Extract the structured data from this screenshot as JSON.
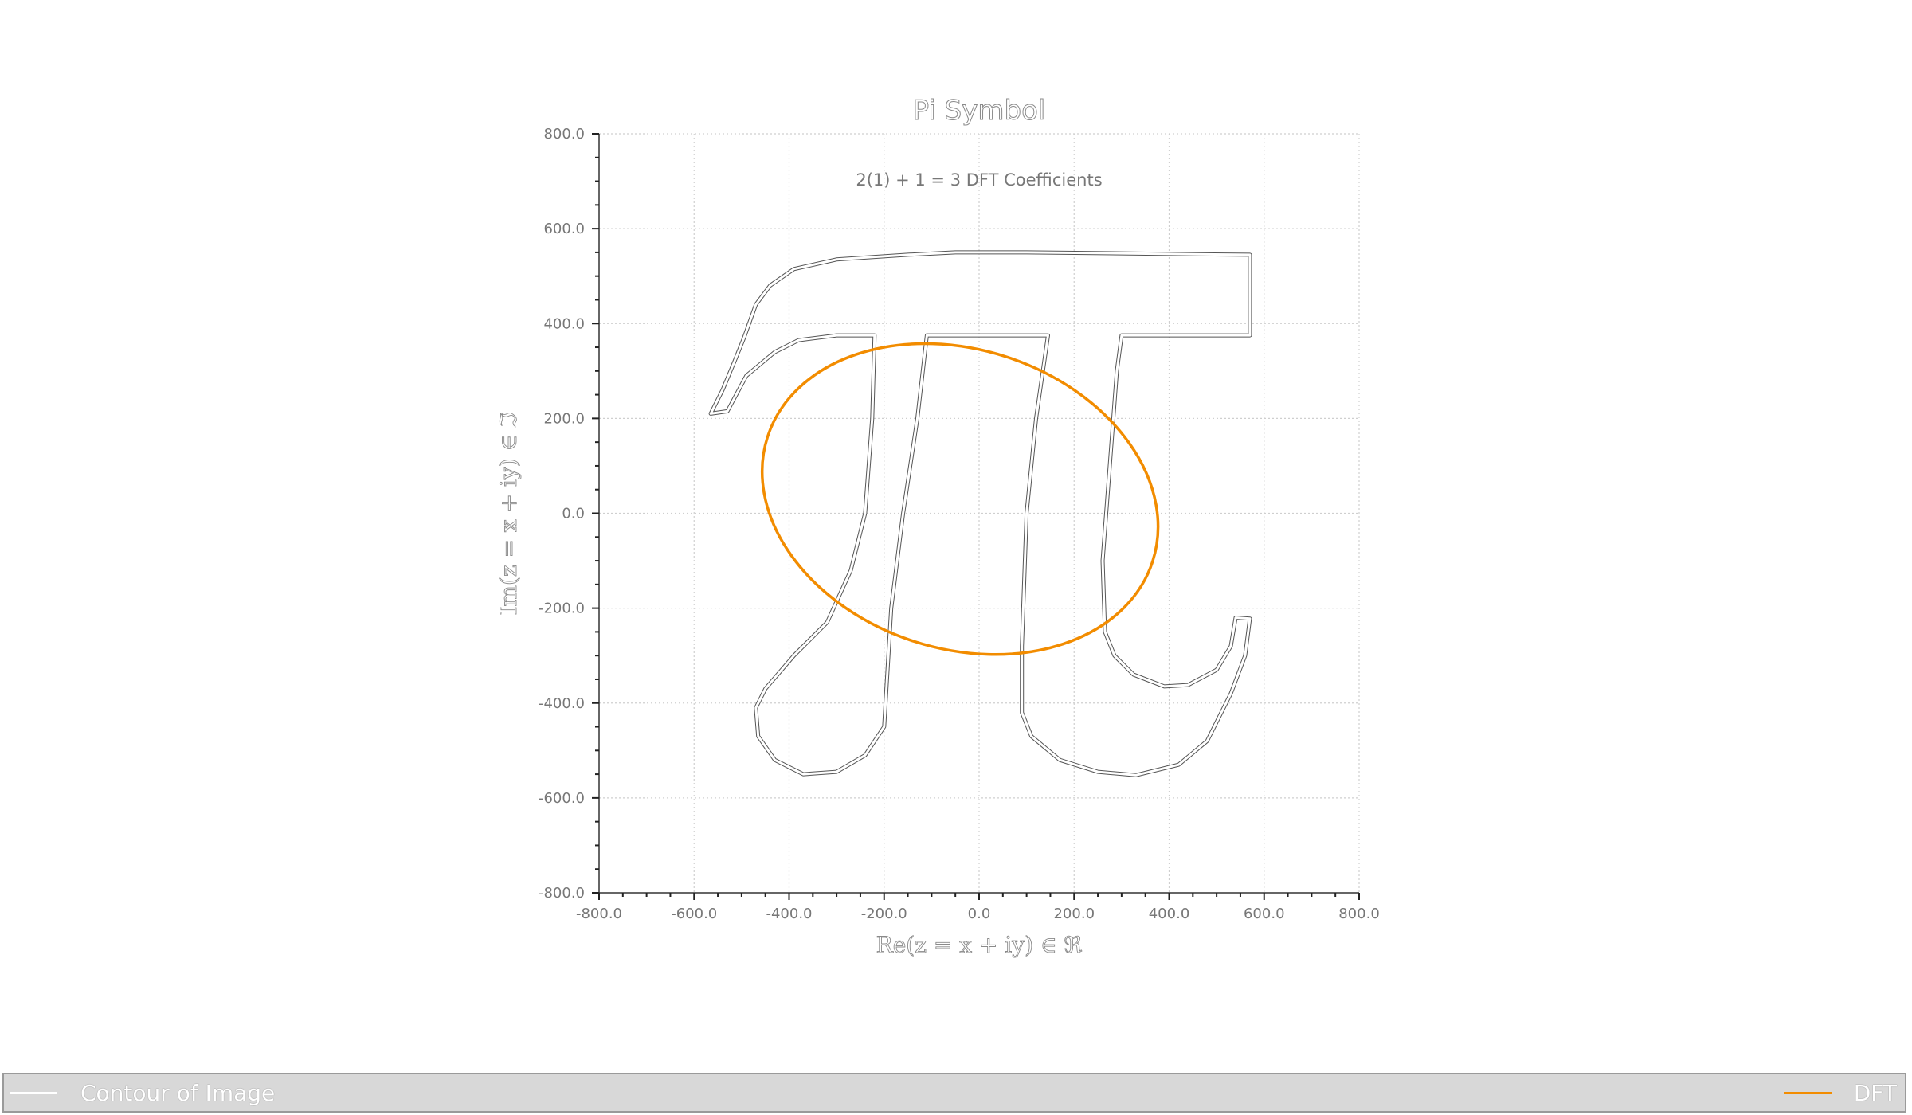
{
  "chart_data": {
    "type": "line",
    "title": "Pi Symbol",
    "annotation": "2(1) + 1 = 3 DFT Coefficients",
    "xlabel": "Re(z = x + iy)  ∈ ℜ",
    "ylabel": "Im(z = x + iy)  ∈ ℑ",
    "xlim": [
      -800,
      800
    ],
    "ylim": [
      -800,
      800
    ],
    "x_ticks": [
      "-800.0",
      "-600.0",
      "-400.0",
      "-200.0",
      "0.0",
      "200.0",
      "400.0",
      "600.0",
      "800.0"
    ],
    "y_ticks": [
      "800.0",
      "600.0",
      "400.0",
      "200.0",
      "0.0",
      "-200.0",
      "-400.0",
      "-600.0",
      "-800.0"
    ],
    "grid": true,
    "legend_position": "bottom",
    "series": [
      {
        "name": "Contour of Image",
        "color": "#ffffff",
        "points": [
          [
            -565,
            210
          ],
          [
            -540,
            260
          ],
          [
            -515,
            320
          ],
          [
            -495,
            370
          ],
          [
            -470,
            440
          ],
          [
            -440,
            480
          ],
          [
            -390,
            515
          ],
          [
            -300,
            535
          ],
          [
            -150,
            545
          ],
          [
            -50,
            550
          ],
          [
            100,
            550
          ],
          [
            300,
            548
          ],
          [
            455,
            546
          ],
          [
            570,
            545
          ],
          [
            570,
            375
          ],
          [
            300,
            375
          ],
          [
            290,
            300
          ],
          [
            275,
            100
          ],
          [
            260,
            -100
          ],
          [
            265,
            -250
          ],
          [
            285,
            -300
          ],
          [
            325,
            -340
          ],
          [
            390,
            -365
          ],
          [
            440,
            -362
          ],
          [
            500,
            -330
          ],
          [
            530,
            -280
          ],
          [
            540,
            -220
          ],
          [
            570,
            -222
          ],
          [
            560,
            -300
          ],
          [
            530,
            -380
          ],
          [
            480,
            -480
          ],
          [
            420,
            -530
          ],
          [
            330,
            -552
          ],
          [
            250,
            -545
          ],
          [
            170,
            -520
          ],
          [
            110,
            -470
          ],
          [
            90,
            -420
          ],
          [
            90,
            -280
          ],
          [
            100,
            0
          ],
          [
            120,
            200
          ],
          [
            145,
            375
          ],
          [
            -110,
            375
          ],
          [
            -130,
            200
          ],
          [
            -160,
            0
          ],
          [
            -185,
            -200
          ],
          [
            -200,
            -450
          ],
          [
            -240,
            -510
          ],
          [
            -300,
            -545
          ],
          [
            -370,
            -550
          ],
          [
            -430,
            -520
          ],
          [
            -465,
            -470
          ],
          [
            -470,
            -410
          ],
          [
            -450,
            -370
          ],
          [
            -390,
            -300
          ],
          [
            -320,
            -230
          ],
          [
            -270,
            -120
          ],
          [
            -240,
            0
          ],
          [
            -225,
            200
          ],
          [
            -220,
            375
          ],
          [
            -300,
            375
          ],
          [
            -380,
            365
          ],
          [
            -430,
            340
          ],
          [
            -490,
            290
          ],
          [
            -530,
            215
          ],
          [
            -565,
            210
          ]
        ]
      },
      {
        "name": "DFT",
        "color": "#f28c00",
        "ellipse": {
          "center": [
            -40,
            30
          ],
          "radii": [
            426,
            315
          ],
          "rotation_deg": -18
        }
      }
    ]
  },
  "legend": [
    {
      "label": "Contour of Image",
      "color": "#ffffff"
    },
    {
      "label": "DFT",
      "color": "#f28c00"
    }
  ]
}
